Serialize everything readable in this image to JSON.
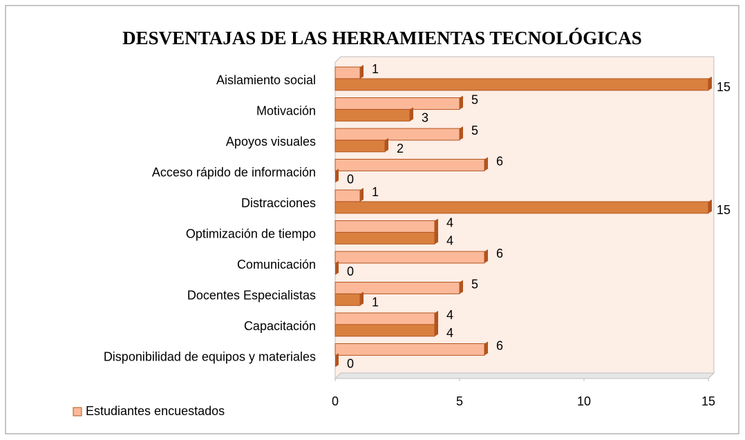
{
  "chart_data": {
    "type": "bar",
    "orientation": "horizontal",
    "title": "DESVENTAJAS DE LAS HERRAMIENTAS TECNOLÓGICAS",
    "categories": [
      "Aislamiento social",
      "Motivación",
      "Apoyos visuales",
      "Acceso rápido de información",
      "Distracciones",
      "Optimización de tiempo",
      "Comunicación",
      "Docentes Especialistas",
      "Capacitación",
      "Disponibilidad de equipos y materiales"
    ],
    "series": [
      {
        "name": "Estudiantes encuestados",
        "color": "#fbb99a",
        "values": [
          1,
          5,
          5,
          6,
          1,
          4,
          6,
          5,
          4,
          6
        ]
      },
      {
        "color": "#d9803f",
        "values": [
          15,
          3,
          2,
          0,
          15,
          4,
          0,
          1,
          4,
          0
        ]
      }
    ],
    "xlim": [
      0,
      15
    ],
    "xticks": [
      0,
      5,
      10,
      15
    ],
    "legend": "bottom-left"
  }
}
